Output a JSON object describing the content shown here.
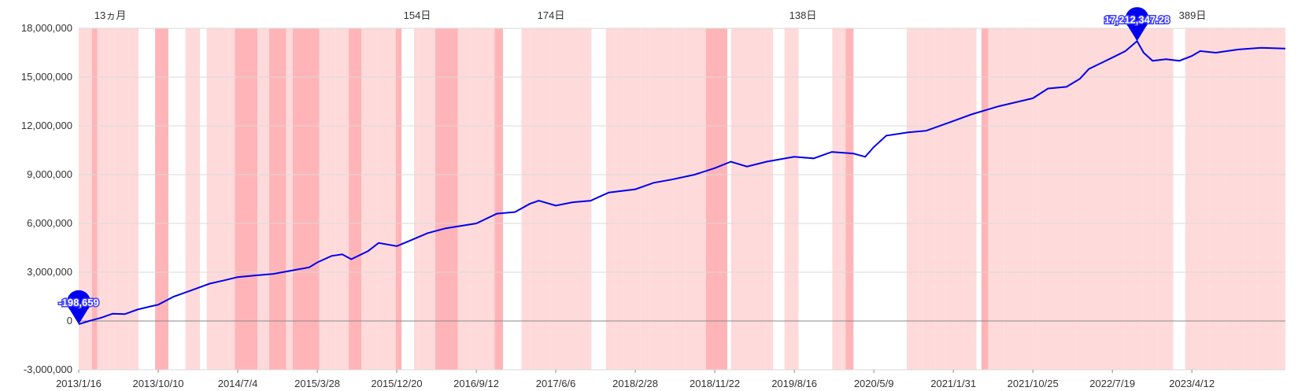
{
  "chart_data": {
    "type": "line",
    "title": "",
    "xlabel": "",
    "ylabel": "",
    "ylim": [
      -3000000,
      18000000
    ],
    "y_ticks": [
      -3000000,
      0,
      3000000,
      6000000,
      9000000,
      12000000,
      15000000,
      18000000
    ],
    "y_tick_labels": [
      "-3,000,000",
      "0",
      "3,000,000",
      "6,000,000",
      "9,000,000",
      "12,000,000",
      "15,000,000",
      "18,000,000"
    ],
    "x_range": [
      "2013-01-16",
      "2024-02-20"
    ],
    "x_tick_labels": [
      "2013/1/16",
      "2013/10/10",
      "2014/7/4",
      "2015/3/28",
      "2015/12/20",
      "2016/9/12",
      "2017/6/6",
      "2018/2/28",
      "2018/11/22",
      "2019/8/16",
      "2020/5/9",
      "2021/1/31",
      "2021/10/25",
      "2022/7/19",
      "2023/4/12"
    ],
    "x_tick_dates": [
      "2013-01-16",
      "2013-10-10",
      "2014-07-04",
      "2015-03-28",
      "2015-12-20",
      "2016-09-12",
      "2017-06-06",
      "2018-02-28",
      "2018-11-22",
      "2019-08-16",
      "2020-05-09",
      "2021-01-31",
      "2021-10-25",
      "2022-07-19",
      "2023-04-12"
    ],
    "grid": true,
    "series": [
      {
        "color": "#0000ee",
        "points": [
          [
            "2013-01-16",
            -198659
          ],
          [
            "2013-02-20",
            0
          ],
          [
            "2013-04-01",
            200000
          ],
          [
            "2013-05-10",
            450000
          ],
          [
            "2013-06-20",
            420000
          ],
          [
            "2013-08-01",
            700000
          ],
          [
            "2013-09-15",
            900000
          ],
          [
            "2013-10-10",
            1000000
          ],
          [
            "2013-12-01",
            1500000
          ],
          [
            "2014-02-01",
            1900000
          ],
          [
            "2014-04-01",
            2300000
          ],
          [
            "2014-05-20",
            2500000
          ],
          [
            "2014-07-04",
            2700000
          ],
          [
            "2014-09-01",
            2800000
          ],
          [
            "2014-11-01",
            2900000
          ],
          [
            "2015-01-01",
            3100000
          ],
          [
            "2015-03-01",
            3300000
          ],
          [
            "2015-03-28",
            3600000
          ],
          [
            "2015-05-15",
            4000000
          ],
          [
            "2015-06-20",
            4100000
          ],
          [
            "2015-07-20",
            3800000
          ],
          [
            "2015-09-15",
            4300000
          ],
          [
            "2015-10-20",
            4800000
          ],
          [
            "2015-12-20",
            4600000
          ],
          [
            "2016-02-10",
            5000000
          ],
          [
            "2016-04-01",
            5400000
          ],
          [
            "2016-06-01",
            5700000
          ],
          [
            "2016-09-12",
            6000000
          ],
          [
            "2016-11-20",
            6600000
          ],
          [
            "2017-01-20",
            6700000
          ],
          [
            "2017-03-10",
            7200000
          ],
          [
            "2017-04-10",
            7400000
          ],
          [
            "2017-06-06",
            7100000
          ],
          [
            "2017-08-01",
            7300000
          ],
          [
            "2017-10-01",
            7400000
          ],
          [
            "2017-12-01",
            7900000
          ],
          [
            "2018-02-28",
            8100000
          ],
          [
            "2018-05-01",
            8500000
          ],
          [
            "2018-07-01",
            8700000
          ],
          [
            "2018-09-15",
            9000000
          ],
          [
            "2018-11-22",
            9400000
          ],
          [
            "2019-01-15",
            9800000
          ],
          [
            "2019-03-10",
            9500000
          ],
          [
            "2019-05-15",
            9800000
          ],
          [
            "2019-08-16",
            10100000
          ],
          [
            "2019-10-20",
            10000000
          ],
          [
            "2019-12-20",
            10400000
          ],
          [
            "2020-03-01",
            10300000
          ],
          [
            "2020-04-10",
            10100000
          ],
          [
            "2020-05-09",
            10700000
          ],
          [
            "2020-06-20",
            11400000
          ],
          [
            "2020-09-01",
            11600000
          ],
          [
            "2020-11-01",
            11700000
          ],
          [
            "2021-01-31",
            12300000
          ],
          [
            "2021-04-01",
            12700000
          ],
          [
            "2021-07-01",
            13200000
          ],
          [
            "2021-10-25",
            13700000
          ],
          [
            "2021-12-15",
            14300000
          ],
          [
            "2022-02-15",
            14400000
          ],
          [
            "2022-04-01",
            14900000
          ],
          [
            "2022-05-01",
            15500000
          ],
          [
            "2022-07-19",
            16200000
          ],
          [
            "2022-09-01",
            16600000
          ],
          [
            "2022-10-10",
            17212347
          ],
          [
            "2022-11-01",
            16500000
          ],
          [
            "2022-12-01",
            16000000
          ],
          [
            "2023-01-15",
            16100000
          ],
          [
            "2023-03-01",
            16000000
          ],
          [
            "2023-04-12",
            16300000
          ],
          [
            "2023-05-10",
            16600000
          ],
          [
            "2023-07-01",
            16500000
          ],
          [
            "2023-09-15",
            16700000
          ],
          [
            "2023-12-01",
            16800000
          ],
          [
            "2024-02-20",
            16750000
          ]
        ]
      }
    ],
    "annotations": [
      {
        "date": "2013-01-16",
        "value": -198659,
        "label": "-198,659"
      },
      {
        "date": "2022-10-10",
        "value": 17212347,
        "label": "17,212,347.28"
      }
    ],
    "band_labels": [
      "389日",
      "174日",
      "154日",
      "138日",
      "13ヵ月"
    ],
    "band_colors": [
      "#ffb5b8",
      "#ffdadb"
    ]
  }
}
